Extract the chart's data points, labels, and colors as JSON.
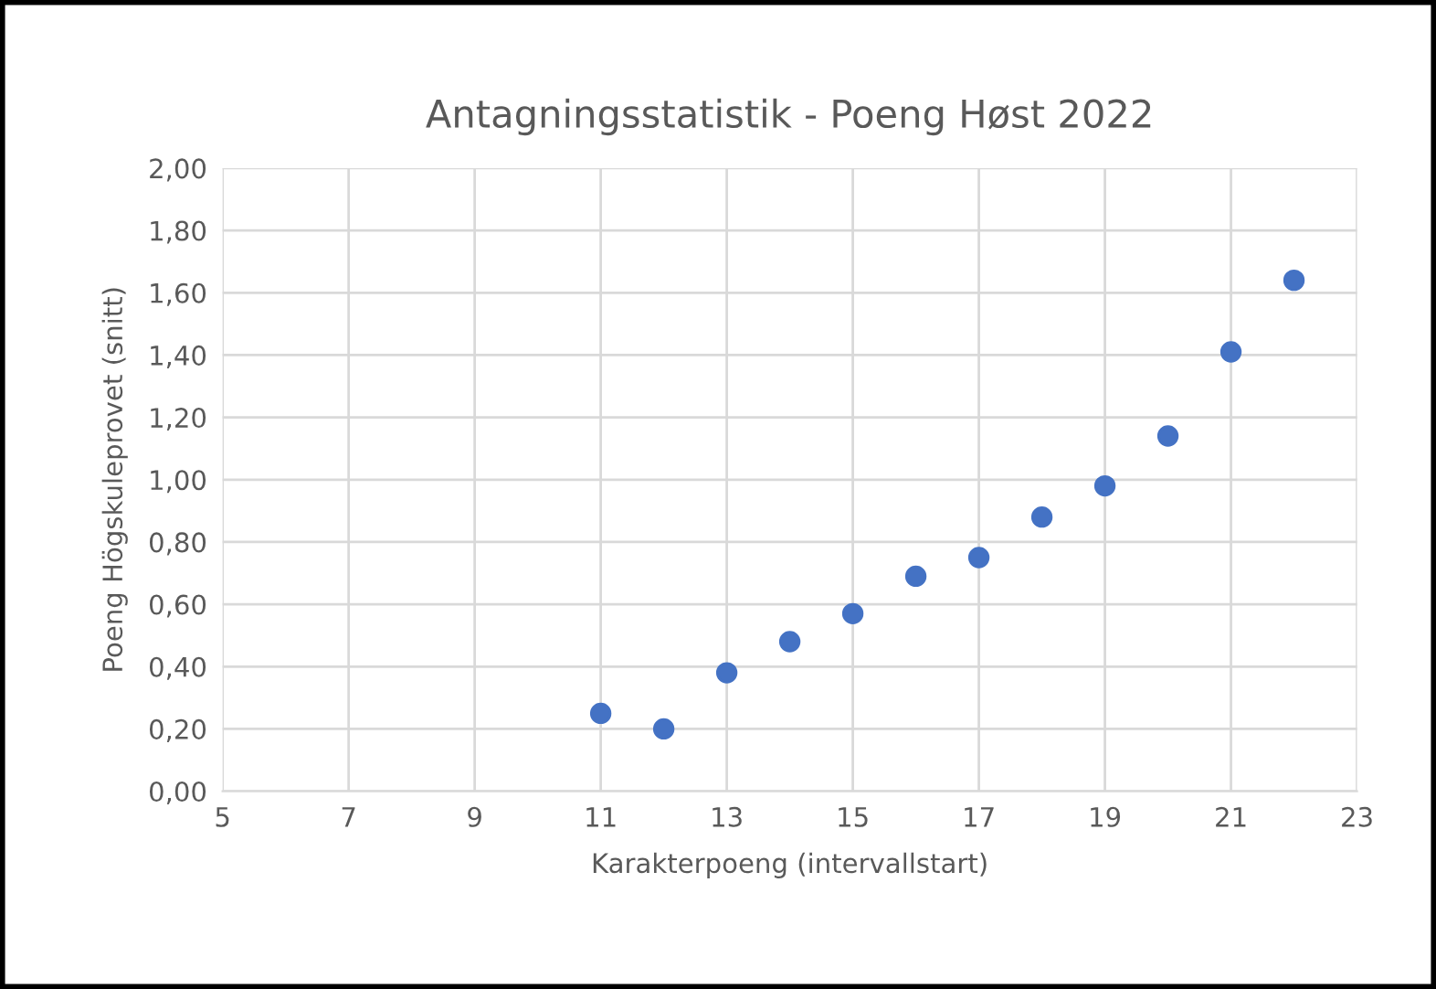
{
  "chart_data": {
    "type": "scatter",
    "title": "Antagningsstatistik - Poeng Høst 2022",
    "xlabel": "Karakterpoeng (intervallstart)",
    "ylabel": "Poeng Högskuleprovet (snitt)",
    "x": [
      11,
      12,
      13,
      14,
      15,
      16,
      17,
      18,
      19,
      20,
      21,
      22
    ],
    "series": [
      {
        "color": "#4472c4",
        "values": [
          0.25,
          0.2,
          0.38,
          0.48,
          0.57,
          0.69,
          0.75,
          0.88,
          0.98,
          1.14,
          1.41,
          1.64
        ]
      }
    ],
    "xlim": [
      5,
      23
    ],
    "xticks": [
      5,
      7,
      9,
      11,
      13,
      15,
      17,
      19,
      21,
      23
    ],
    "ylim": [
      0,
      2
    ],
    "yticks": [
      {
        "value": 0,
        "label": "0,00"
      },
      {
        "value": 0.2,
        "label": "0,20"
      },
      {
        "value": 0.4,
        "label": "0,40"
      },
      {
        "value": 0.6,
        "label": "0,60"
      },
      {
        "value": 0.8,
        "label": "0,80"
      },
      {
        "value": 1.0,
        "label": "1,00"
      },
      {
        "value": 1.2,
        "label": "1,20"
      },
      {
        "value": 1.4,
        "label": "1,40"
      },
      {
        "value": 1.6,
        "label": "1,60"
      },
      {
        "value": 1.8,
        "label": "1,80"
      },
      {
        "value": 2.0,
        "label": "2,00"
      }
    ],
    "grid": true,
    "marker": "circle",
    "legend": false
  }
}
